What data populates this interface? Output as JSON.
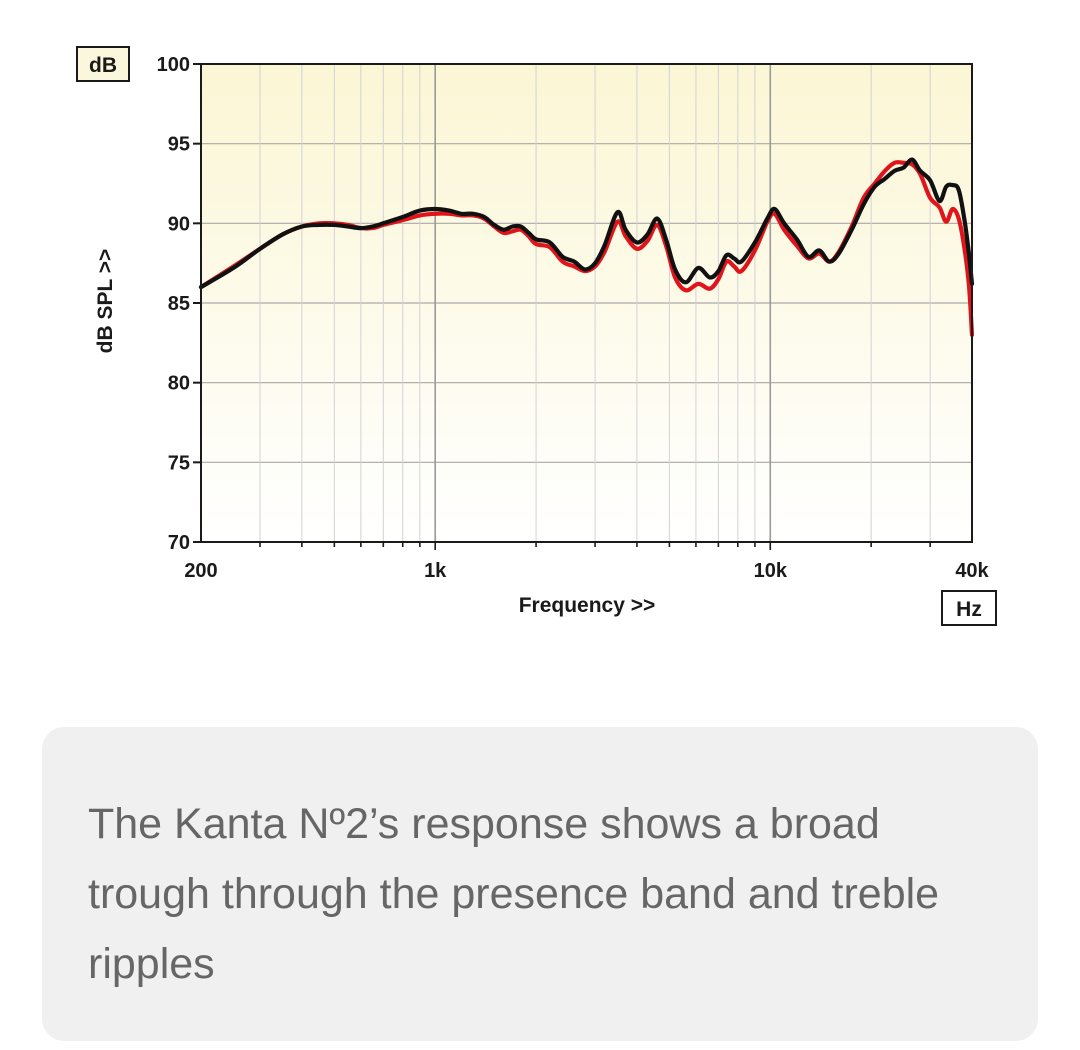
{
  "chart_data": {
    "type": "line",
    "xlabel": "Frequency >>",
    "ylabel": "dB SPL >>",
    "x_unit": "Hz",
    "y_unit": "dB",
    "x_scale": "log",
    "xlim": [
      200,
      40000
    ],
    "ylim": [
      70,
      100
    ],
    "grid": true,
    "y_ticks": [
      100,
      95,
      90,
      85,
      80,
      75,
      70
    ],
    "x_tick_labels": [
      {
        "value": 200,
        "label": "200"
      },
      {
        "value": 1000,
        "label": "1k"
      },
      {
        "value": 10000,
        "label": "10k"
      },
      {
        "value": 40000,
        "label": "40k"
      }
    ],
    "series": [
      {
        "color": "#e0141a",
        "points": [
          [
            200,
            86.0
          ],
          [
            250,
            87.3
          ],
          [
            300,
            88.4
          ],
          [
            350,
            89.3
          ],
          [
            400,
            89.8
          ],
          [
            450,
            90.0
          ],
          [
            500,
            90.0
          ],
          [
            550,
            89.9
          ],
          [
            600,
            89.7
          ],
          [
            650,
            89.7
          ],
          [
            700,
            89.9
          ],
          [
            800,
            90.2
          ],
          [
            900,
            90.5
          ],
          [
            1000,
            90.6
          ],
          [
            1100,
            90.6
          ],
          [
            1200,
            90.5
          ],
          [
            1300,
            90.5
          ],
          [
            1400,
            90.3
          ],
          [
            1500,
            89.8
          ],
          [
            1600,
            89.4
          ],
          [
            1700,
            89.5
          ],
          [
            1800,
            89.6
          ],
          [
            1900,
            89.2
          ],
          [
            2000,
            88.7
          ],
          [
            2200,
            88.5
          ],
          [
            2400,
            87.6
          ],
          [
            2600,
            87.3
          ],
          [
            2800,
            87.0
          ],
          [
            3000,
            87.3
          ],
          [
            3200,
            88.2
          ],
          [
            3500,
            90.1
          ],
          [
            3700,
            89.2
          ],
          [
            4000,
            88.4
          ],
          [
            4300,
            88.9
          ],
          [
            4600,
            89.9
          ],
          [
            4900,
            88.5
          ],
          [
            5200,
            86.6
          ],
          [
            5600,
            85.8
          ],
          [
            6100,
            86.2
          ],
          [
            6600,
            85.9
          ],
          [
            7000,
            86.5
          ],
          [
            7400,
            87.6
          ],
          [
            7800,
            87.3
          ],
          [
            8200,
            87.0
          ],
          [
            9000,
            88.3
          ],
          [
            9800,
            90.1
          ],
          [
            10300,
            90.6
          ],
          [
            11000,
            89.6
          ],
          [
            12000,
            88.6
          ],
          [
            13000,
            87.8
          ],
          [
            14000,
            88.1
          ],
          [
            15000,
            87.6
          ],
          [
            16000,
            88.2
          ],
          [
            17500,
            89.8
          ],
          [
            19000,
            91.6
          ],
          [
            20500,
            92.5
          ],
          [
            22000,
            93.3
          ],
          [
            23500,
            93.8
          ],
          [
            25000,
            93.8
          ],
          [
            26500,
            93.7
          ],
          [
            28000,
            93.1
          ],
          [
            30000,
            91.6
          ],
          [
            32000,
            91.0
          ],
          [
            33500,
            90.1
          ],
          [
            35000,
            90.9
          ],
          [
            36500,
            90.3
          ],
          [
            38000,
            88.4
          ],
          [
            39200,
            86.0
          ],
          [
            40000,
            83.0
          ]
        ]
      },
      {
        "color": "#111111",
        "points": [
          [
            200,
            86.0
          ],
          [
            250,
            87.2
          ],
          [
            300,
            88.4
          ],
          [
            350,
            89.3
          ],
          [
            400,
            89.8
          ],
          [
            450,
            89.9
          ],
          [
            500,
            89.9
          ],
          [
            550,
            89.8
          ],
          [
            600,
            89.7
          ],
          [
            650,
            89.8
          ],
          [
            700,
            90.0
          ],
          [
            800,
            90.4
          ],
          [
            900,
            90.8
          ],
          [
            1000,
            90.9
          ],
          [
            1100,
            90.8
          ],
          [
            1200,
            90.6
          ],
          [
            1300,
            90.6
          ],
          [
            1400,
            90.4
          ],
          [
            1500,
            89.9
          ],
          [
            1600,
            89.6
          ],
          [
            1700,
            89.8
          ],
          [
            1800,
            89.8
          ],
          [
            1900,
            89.4
          ],
          [
            2000,
            89.0
          ],
          [
            2200,
            88.8
          ],
          [
            2400,
            87.9
          ],
          [
            2600,
            87.6
          ],
          [
            2800,
            87.1
          ],
          [
            3000,
            87.5
          ],
          [
            3200,
            88.6
          ],
          [
            3500,
            90.7
          ],
          [
            3700,
            89.6
          ],
          [
            4000,
            88.8
          ],
          [
            4300,
            89.3
          ],
          [
            4600,
            90.3
          ],
          [
            4900,
            88.9
          ],
          [
            5200,
            87.1
          ],
          [
            5600,
            86.3
          ],
          [
            6100,
            87.2
          ],
          [
            6600,
            86.6
          ],
          [
            7000,
            87.0
          ],
          [
            7400,
            88.0
          ],
          [
            7800,
            87.8
          ],
          [
            8200,
            87.6
          ],
          [
            9000,
            88.8
          ],
          [
            9800,
            90.3
          ],
          [
            10300,
            90.9
          ],
          [
            11000,
            90.0
          ],
          [
            12000,
            89.0
          ],
          [
            13000,
            87.9
          ],
          [
            14000,
            88.3
          ],
          [
            15000,
            87.6
          ],
          [
            16000,
            88.1
          ],
          [
            17500,
            89.6
          ],
          [
            19000,
            91.2
          ],
          [
            20500,
            92.3
          ],
          [
            22000,
            92.8
          ],
          [
            23500,
            93.3
          ],
          [
            25000,
            93.5
          ],
          [
            26500,
            94.0
          ],
          [
            28000,
            93.3
          ],
          [
            30000,
            92.7
          ],
          [
            32000,
            91.4
          ],
          [
            33500,
            92.3
          ],
          [
            35000,
            92.4
          ],
          [
            36500,
            92.1
          ],
          [
            38000,
            90.2
          ],
          [
            39200,
            88.0
          ],
          [
            40000,
            86.2
          ]
        ]
      }
    ]
  },
  "caption": "The Kanta Nº2’s response shows a broad trough through the presence band and treble ripples"
}
